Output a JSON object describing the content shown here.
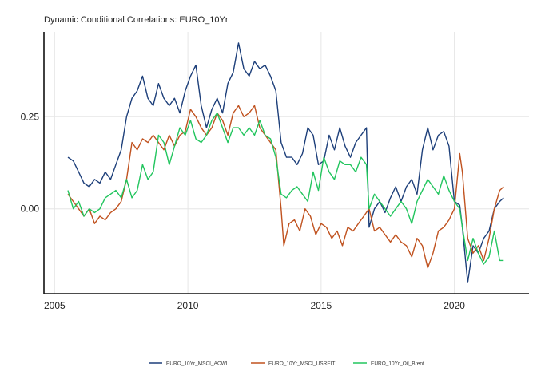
{
  "chart_data": {
    "type": "line",
    "title": "Dynamic Conditional Correlations: EURO_10Yr",
    "xlabel": "",
    "ylabel": "",
    "x_ticks": [
      "2005",
      "2010",
      "2015",
      "2020"
    ],
    "x_tick_values": [
      2005,
      2010,
      2015,
      2020
    ],
    "y_ticks": [
      "0.00",
      "0.25"
    ],
    "y_tick_values": [
      0.0,
      0.25
    ],
    "xlim": [
      2004.6,
      2022.8
    ],
    "ylim": [
      -0.23,
      0.48
    ],
    "grid": true,
    "legend_position": "bottom",
    "series": [
      {
        "name": "EURO_10Yr_MSCI_ACWI",
        "color": "#1d3f7a",
        "x": [
          2005.5,
          2005.7,
          2005.9,
          2006.1,
          2006.3,
          2006.5,
          2006.7,
          2006.9,
          2007.1,
          2007.3,
          2007.5,
          2007.7,
          2007.9,
          2008.1,
          2008.3,
          2008.5,
          2008.7,
          2008.9,
          2009.1,
          2009.3,
          2009.5,
          2009.7,
          2009.9,
          2010.1,
          2010.3,
          2010.5,
          2010.7,
          2010.9,
          2011.1,
          2011.3,
          2011.5,
          2011.7,
          2011.9,
          2012.1,
          2012.3,
          2012.5,
          2012.7,
          2012.9,
          2013.1,
          2013.3,
          2013.5,
          2013.7,
          2013.9,
          2014.1,
          2014.3,
          2014.5,
          2014.7,
          2014.9,
          2015.1,
          2015.3,
          2015.5,
          2015.7,
          2015.9,
          2016.1,
          2016.3,
          2016.5,
          2016.7,
          2016.8,
          2017.0,
          2017.2,
          2017.4,
          2017.6,
          2017.8,
          2018.0,
          2018.2,
          2018.4,
          2018.6,
          2018.8,
          2019.0,
          2019.2,
          2019.4,
          2019.6,
          2019.8,
          2020.0,
          2020.2,
          2020.3,
          2020.5,
          2020.7,
          2020.9,
          2021.1,
          2021.3,
          2021.5,
          2021.7,
          2021.85
        ],
        "y": [
          0.14,
          0.13,
          0.1,
          0.07,
          0.06,
          0.08,
          0.07,
          0.1,
          0.08,
          0.12,
          0.16,
          0.25,
          0.3,
          0.32,
          0.36,
          0.3,
          0.28,
          0.34,
          0.3,
          0.28,
          0.3,
          0.26,
          0.32,
          0.36,
          0.39,
          0.28,
          0.22,
          0.27,
          0.3,
          0.26,
          0.34,
          0.37,
          0.45,
          0.38,
          0.36,
          0.4,
          0.38,
          0.39,
          0.36,
          0.32,
          0.18,
          0.14,
          0.14,
          0.12,
          0.15,
          0.22,
          0.2,
          0.12,
          0.13,
          0.2,
          0.16,
          0.22,
          0.17,
          0.14,
          0.18,
          0.2,
          0.22,
          -0.05,
          0.0,
          0.02,
          -0.01,
          0.03,
          0.06,
          0.02,
          0.06,
          0.08,
          0.04,
          0.16,
          0.22,
          0.16,
          0.2,
          0.21,
          0.17,
          0.02,
          0.01,
          -0.05,
          -0.2,
          -0.1,
          -0.12,
          -0.08,
          -0.06,
          0.0,
          0.02,
          0.03
        ]
      },
      {
        "name": "EURO_10Yr_MSCI_USREIT",
        "color": "#c0521f",
        "x": [
          2005.5,
          2005.7,
          2005.9,
          2006.1,
          2006.3,
          2006.5,
          2006.7,
          2006.9,
          2007.1,
          2007.3,
          2007.5,
          2007.7,
          2007.9,
          2008.1,
          2008.3,
          2008.5,
          2008.7,
          2008.9,
          2009.1,
          2009.3,
          2009.5,
          2009.7,
          2009.9,
          2010.1,
          2010.3,
          2010.5,
          2010.7,
          2010.9,
          2011.1,
          2011.3,
          2011.5,
          2011.7,
          2011.9,
          2012.1,
          2012.3,
          2012.5,
          2012.7,
          2012.9,
          2013.1,
          2013.3,
          2013.5,
          2013.6,
          2013.8,
          2014.0,
          2014.2,
          2014.4,
          2014.6,
          2014.8,
          2015.0,
          2015.2,
          2015.4,
          2015.6,
          2015.8,
          2016.0,
          2016.2,
          2016.4,
          2016.6,
          2016.8,
          2017.0,
          2017.2,
          2017.4,
          2017.6,
          2017.8,
          2018.0,
          2018.2,
          2018.4,
          2018.6,
          2018.8,
          2019.0,
          2019.2,
          2019.4,
          2019.6,
          2019.8,
          2020.0,
          2020.2,
          2020.3,
          2020.5,
          2020.7,
          2020.9,
          2021.1,
          2021.3,
          2021.5,
          2021.7,
          2021.85
        ],
        "y": [
          0.04,
          0.02,
          0.0,
          -0.02,
          0.0,
          -0.04,
          -0.02,
          -0.03,
          -0.01,
          0.0,
          0.02,
          0.08,
          0.18,
          0.16,
          0.19,
          0.18,
          0.2,
          0.18,
          0.16,
          0.2,
          0.17,
          0.2,
          0.21,
          0.27,
          0.25,
          0.22,
          0.2,
          0.22,
          0.26,
          0.24,
          0.2,
          0.26,
          0.28,
          0.25,
          0.26,
          0.28,
          0.22,
          0.2,
          0.18,
          0.16,
          0.0,
          -0.1,
          -0.04,
          -0.03,
          -0.06,
          0.0,
          -0.02,
          -0.07,
          -0.04,
          -0.05,
          -0.08,
          -0.06,
          -0.1,
          -0.05,
          -0.06,
          -0.04,
          -0.02,
          0.0,
          -0.06,
          -0.05,
          -0.07,
          -0.09,
          -0.07,
          -0.09,
          -0.1,
          -0.13,
          -0.08,
          -0.1,
          -0.16,
          -0.12,
          -0.06,
          -0.05,
          -0.03,
          0.0,
          0.15,
          0.1,
          -0.08,
          -0.12,
          -0.1,
          -0.14,
          -0.08,
          0.0,
          0.05,
          0.06
        ]
      },
      {
        "name": "EURO_10Yr_Oil_Brent",
        "color": "#22c55e",
        "x": [
          2005.5,
          2005.7,
          2005.9,
          2006.1,
          2006.3,
          2006.5,
          2006.7,
          2006.9,
          2007.1,
          2007.3,
          2007.5,
          2007.7,
          2007.9,
          2008.1,
          2008.3,
          2008.5,
          2008.7,
          2008.9,
          2009.1,
          2009.3,
          2009.5,
          2009.7,
          2009.9,
          2010.1,
          2010.3,
          2010.5,
          2010.7,
          2010.9,
          2011.1,
          2011.3,
          2011.5,
          2011.7,
          2011.9,
          2012.1,
          2012.3,
          2012.5,
          2012.7,
          2012.9,
          2013.1,
          2013.3,
          2013.5,
          2013.7,
          2013.9,
          2014.1,
          2014.3,
          2014.5,
          2014.7,
          2014.9,
          2015.1,
          2015.3,
          2015.5,
          2015.7,
          2015.9,
          2016.1,
          2016.3,
          2016.5,
          2016.7,
          2016.8,
          2017.0,
          2017.2,
          2017.4,
          2017.6,
          2017.8,
          2018.0,
          2018.2,
          2018.4,
          2018.6,
          2018.8,
          2019.0,
          2019.2,
          2019.4,
          2019.6,
          2019.8,
          2020.0,
          2020.2,
          2020.3,
          2020.5,
          2020.7,
          2020.9,
          2021.1,
          2021.3,
          2021.5,
          2021.7,
          2021.85
        ],
        "y": [
          0.05,
          0.0,
          0.02,
          -0.02,
          0.0,
          -0.01,
          0.0,
          0.03,
          0.04,
          0.05,
          0.03,
          0.08,
          0.03,
          0.05,
          0.12,
          0.08,
          0.1,
          0.2,
          0.18,
          0.12,
          0.17,
          0.22,
          0.2,
          0.24,
          0.19,
          0.18,
          0.2,
          0.24,
          0.26,
          0.22,
          0.18,
          0.22,
          0.22,
          0.2,
          0.22,
          0.2,
          0.24,
          0.2,
          0.19,
          0.14,
          0.04,
          0.03,
          0.05,
          0.06,
          0.04,
          0.02,
          0.1,
          0.05,
          0.14,
          0.1,
          0.08,
          0.13,
          0.12,
          0.12,
          0.1,
          0.14,
          0.12,
          0.0,
          0.04,
          0.02,
          0.0,
          -0.02,
          0.0,
          0.02,
          0.0,
          -0.04,
          0.02,
          0.05,
          0.08,
          0.06,
          0.04,
          0.09,
          0.05,
          0.02,
          0.0,
          -0.05,
          -0.14,
          -0.08,
          -0.12,
          -0.15,
          -0.13,
          -0.06,
          -0.14,
          -0.14
        ]
      }
    ]
  }
}
